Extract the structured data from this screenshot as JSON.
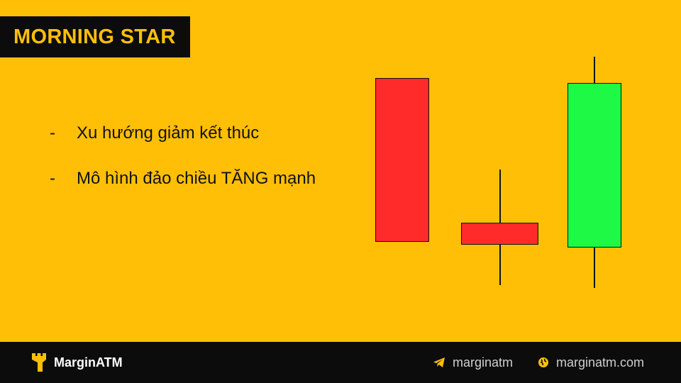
{
  "title": "MORNING STAR",
  "bullets": [
    {
      "marker": "-",
      "text": "Xu hướng giảm kết thúc"
    },
    {
      "marker": "-",
      "text": "Mô hình đảo chiều TĂNG mạnh"
    }
  ],
  "candles": [
    {
      "name": "bearish-candle",
      "color": "#ff2a2a",
      "direction": "down"
    },
    {
      "name": "small-bearish-candle",
      "color": "#ff2a2a",
      "direction": "down"
    },
    {
      "name": "bullish-candle",
      "color": "#1ef946",
      "direction": "up"
    }
  ],
  "footer": {
    "brand": "MarginATM",
    "telegram": "marginatm",
    "website": "marginatm.com"
  },
  "icons": {
    "logo": "castle-tower-icon",
    "telegram": "telegram-icon",
    "website": "globe-icon"
  },
  "colors": {
    "background": "#ffbf07",
    "dark": "#0c0c0c",
    "bearish": "#ff2a2a",
    "bullish": "#1ef946"
  }
}
